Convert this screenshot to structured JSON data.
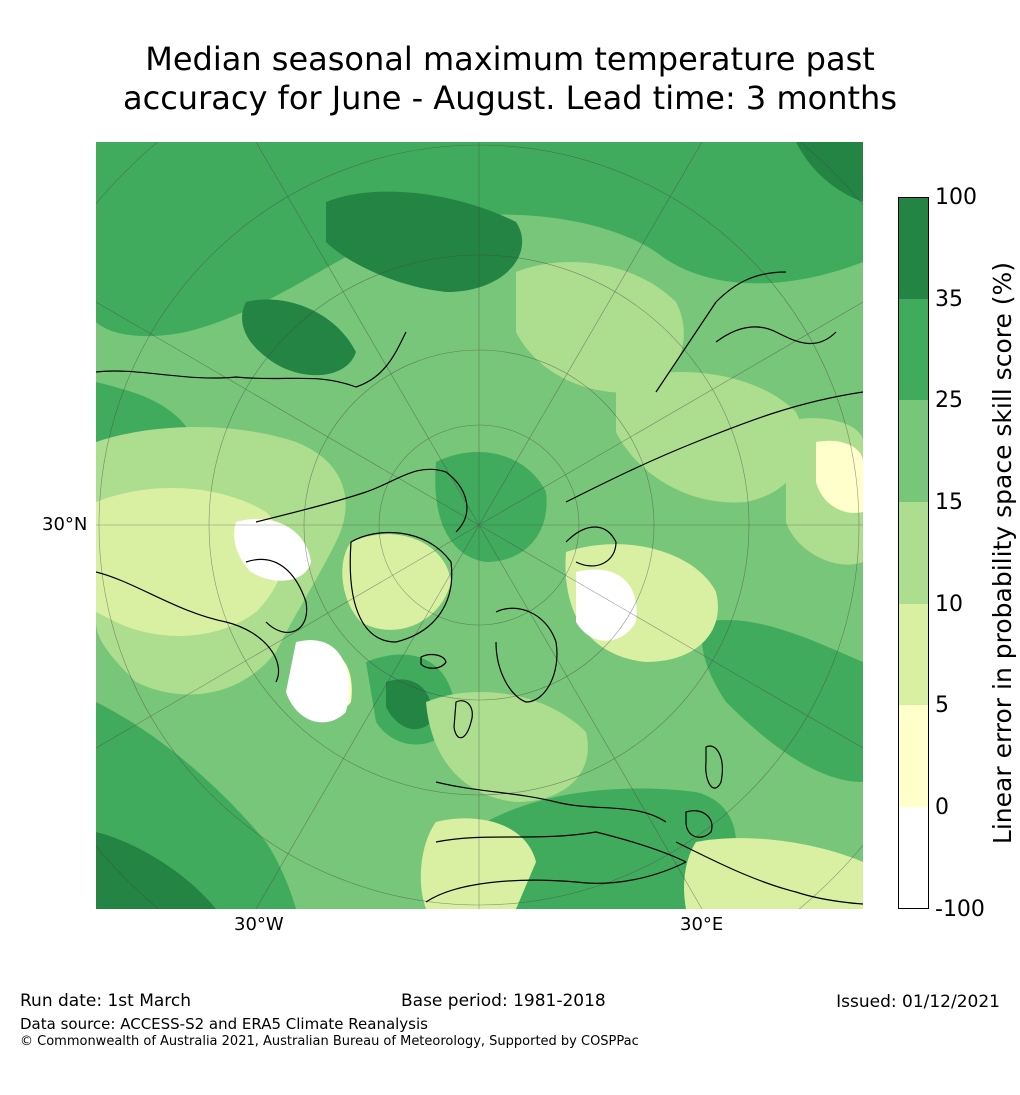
{
  "title_line1": "Median seasonal maximum temperature past",
  "title_line2": "accuracy for June - August. Lead time: 3 months",
  "map": {
    "lat_label": "30°N",
    "lon_labels": [
      "30°W",
      "30°E"
    ],
    "colors": {
      "ocean_low": "#7bc87c",
      "ocean_high": "#41ab5d",
      "highest": "#238443",
      "light": "#addd8e",
      "pale": "#d9f0a3",
      "cream": "#ffffcc",
      "white": "#ffffff",
      "coast": "#000000"
    }
  },
  "colorbar": {
    "label": "Linear error in probability space skill score (%)",
    "ticks": [
      "100",
      "35",
      "25",
      "15",
      "10",
      "5",
      "0",
      "-100"
    ],
    "bands": [
      {
        "from": "35",
        "to": "100",
        "color": "#238443"
      },
      {
        "from": "25",
        "to": "35",
        "color": "#41ab5d"
      },
      {
        "from": "15",
        "to": "25",
        "color": "#78c679"
      },
      {
        "from": "10",
        "to": "15",
        "color": "#addd8e"
      },
      {
        "from": "5",
        "to": "10",
        "color": "#d9f0a3"
      },
      {
        "from": "0",
        "to": "5",
        "color": "#ffffcc"
      },
      {
        "from": "-100",
        "to": "0",
        "color": "#ffffff"
      }
    ]
  },
  "footer": {
    "run_date": "Run date: 1st March",
    "base_period": "Base period: 1981-2018",
    "issued": "Issued: 01/12/2021",
    "data_source": "Data source: ACCESS-S2 and ERA5 Climate Reanalysis",
    "copyright": "© Commonwealth of Australia 2021, Australian Bureau of Meteorology, Supported by COSPPac"
  }
}
